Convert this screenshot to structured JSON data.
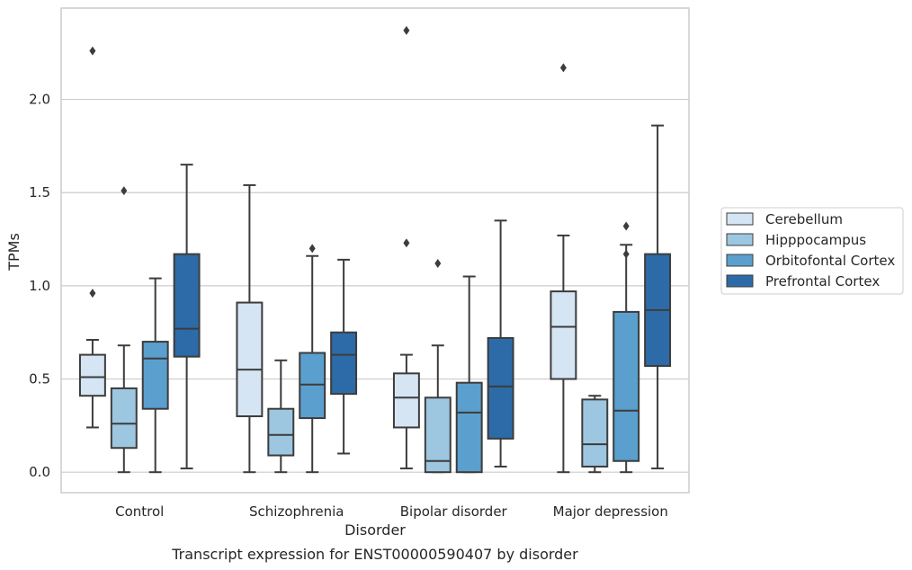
{
  "chart_data": {
    "type": "box",
    "caption": "Transcript expression for ENST00000590407 by disorder",
    "xlabel": "Disorder",
    "ylabel": "TPMs",
    "ylim": [
      -0.11,
      2.49
    ],
    "yticks": [
      "0.0",
      "0.5",
      "1.0",
      "1.5",
      "2.0"
    ],
    "grid": true,
    "legend_position": "right",
    "categories": [
      "Control",
      "Schizophrenia",
      "Bipolar disorder",
      "Major depression"
    ],
    "series": [
      {
        "name": "Cerebellum",
        "color": "#d6e5f4",
        "boxes": [
          {
            "whislo": 0.24,
            "q1": 0.41,
            "med": 0.51,
            "q3": 0.63,
            "whishi": 0.71,
            "fliers": [
              0.96,
              2.26
            ]
          },
          {
            "whislo": 0.0,
            "q1": 0.3,
            "med": 0.55,
            "q3": 0.91,
            "whishi": 1.54,
            "fliers": []
          },
          {
            "whislo": 0.02,
            "q1": 0.24,
            "med": 0.4,
            "q3": 0.53,
            "whishi": 0.63,
            "fliers": [
              1.23,
              2.37
            ]
          },
          {
            "whislo": 0.0,
            "q1": 0.5,
            "med": 0.78,
            "q3": 0.97,
            "whishi": 1.27,
            "fliers": [
              2.17
            ]
          }
        ]
      },
      {
        "name": "Hipppocampus",
        "color": "#9dc6e0",
        "boxes": [
          {
            "whislo": 0.0,
            "q1": 0.13,
            "med": 0.26,
            "q3": 0.45,
            "whishi": 0.68,
            "fliers": [
              1.51
            ]
          },
          {
            "whislo": 0.0,
            "q1": 0.09,
            "med": 0.2,
            "q3": 0.34,
            "whishi": 0.6,
            "fliers": []
          },
          {
            "whislo": 0.0,
            "q1": 0.0,
            "med": 0.06,
            "q3": 0.4,
            "whishi": 0.68,
            "fliers": [
              1.12
            ]
          },
          {
            "whislo": 0.0,
            "q1": 0.03,
            "med": 0.15,
            "q3": 0.39,
            "whishi": 0.41,
            "fliers": []
          }
        ]
      },
      {
        "name": "Orbitofontal Cortex",
        "color": "#5a9fcd",
        "boxes": [
          {
            "whislo": 0.0,
            "q1": 0.34,
            "med": 0.61,
            "q3": 0.7,
            "whishi": 1.04,
            "fliers": []
          },
          {
            "whislo": 0.0,
            "q1": 0.29,
            "med": 0.47,
            "q3": 0.64,
            "whishi": 1.16,
            "fliers": [
              1.2
            ]
          },
          {
            "whislo": 0.0,
            "q1": 0.0,
            "med": 0.32,
            "q3": 0.48,
            "whishi": 1.05,
            "fliers": []
          },
          {
            "whislo": 0.0,
            "q1": 0.06,
            "med": 0.33,
            "q3": 0.86,
            "whishi": 1.22,
            "fliers": [
              1.17,
              1.32
            ]
          }
        ]
      },
      {
        "name": "Prefrontal Cortex",
        "color": "#2d6ba8",
        "boxes": [
          {
            "whislo": 0.02,
            "q1": 0.62,
            "med": 0.77,
            "q3": 1.17,
            "whishi": 1.65,
            "fliers": []
          },
          {
            "whislo": 0.1,
            "q1": 0.42,
            "med": 0.63,
            "q3": 0.75,
            "whishi": 1.14,
            "fliers": []
          },
          {
            "whislo": 0.03,
            "q1": 0.18,
            "med": 0.46,
            "q3": 0.72,
            "whishi": 1.35,
            "fliers": []
          },
          {
            "whislo": 0.02,
            "q1": 0.57,
            "med": 0.87,
            "q3": 1.17,
            "whishi": 1.86,
            "fliers": []
          }
        ]
      }
    ]
  }
}
